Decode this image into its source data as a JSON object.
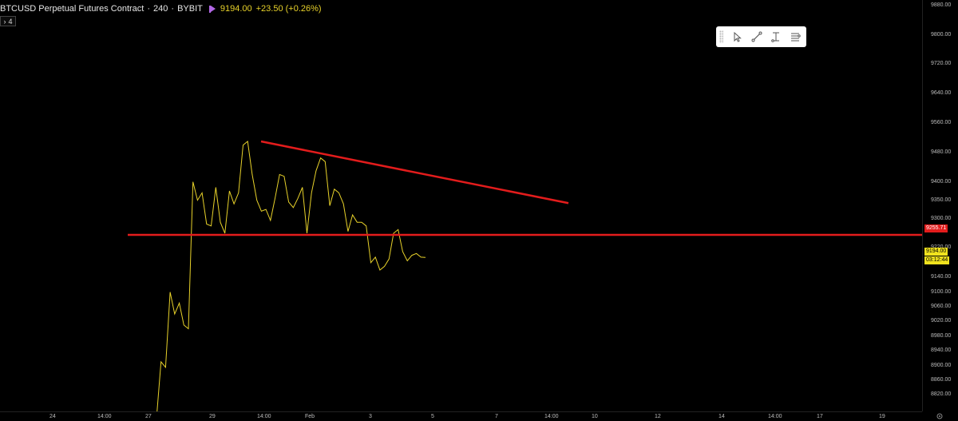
{
  "header": {
    "title": "BTCUSD Perpetual Futures Contract",
    "interval": "240",
    "exchange": "BYBIT",
    "price": "9194.00",
    "change": "+23.50 (+0.26%)",
    "collapse_label": "4",
    "flag_color": "#b267e6",
    "price_color": "#e8d22a"
  },
  "toolbar": {
    "tools": [
      "cursor-icon",
      "trend-line-icon",
      "text-cursor-icon",
      "menu-lines-icon"
    ]
  },
  "price_axis": {
    "labels": [
      "9880.00",
      "9800.00",
      "9720.00",
      "9640.00",
      "9560.00",
      "9480.00",
      "9400.00",
      "9350.00",
      "9300.00",
      "9220.00",
      "9140.00",
      "9100.00",
      "9060.00",
      "9020.00",
      "8980.00",
      "8940.00",
      "8900.00",
      "8860.00",
      "8820.00"
    ],
    "tags": {
      "level": "9255.71",
      "last_price": "9194.00",
      "countdown": "03:12:44"
    }
  },
  "time_axis": {
    "labels": [
      "24",
      "14:00",
      "27",
      "29",
      "14:00",
      "Feb",
      "3",
      "5",
      "7",
      "14:00",
      "10",
      "12",
      "14",
      "14:00",
      "17",
      "19"
    ]
  },
  "chart_data": {
    "type": "line",
    "title": "BTCUSD Perpetual Futures Contract · 240 · BYBIT",
    "xlabel": "",
    "ylabel": "",
    "ylim": [
      8775,
      9895
    ],
    "line_color": "#e8d22a",
    "series": [
      {
        "name": "",
        "x": [
          "Jan 27",
          "Jan 27",
          "Jan 27",
          "Jan 27",
          "Jan 28",
          "Jan 28",
          "Jan 28",
          "Jan 28",
          "Jan 28",
          "Jan 28",
          "Jan 28",
          "Jan 28",
          "Jan 29",
          "Jan 29",
          "Jan 29",
          "Jan 29",
          "Jan 29",
          "Jan 29",
          "Jan 29",
          "Jan 29",
          "Jan 30",
          "Jan 30",
          "Jan 30",
          "Jan 30",
          "Jan 30",
          "Jan 30",
          "Jan 30",
          "Jan 31",
          "Jan 31",
          "Jan 31",
          "Jan 31",
          "Jan 31",
          "Jan 31",
          "Feb 1",
          "Feb 1",
          "Feb 1",
          "Feb 1",
          "Feb 1",
          "Feb 1",
          "Feb 1",
          "Feb 2",
          "Feb 2",
          "Feb 2",
          "Feb 2",
          "Feb 2",
          "Feb 2",
          "Feb 2",
          "Feb 3",
          "Feb 3",
          "Feb 3",
          "Feb 3",
          "Feb 3",
          "Feb 3",
          "Feb 3",
          "Feb 4",
          "Feb 4",
          "Feb 4",
          "Feb 4",
          "Feb 4",
          "Feb 4"
        ],
        "values": [
          8755,
          8910,
          8895,
          9100,
          9040,
          9070,
          9010,
          9000,
          9400,
          9350,
          9370,
          9285,
          9280,
          9385,
          9290,
          9260,
          9375,
          9340,
          9370,
          9500,
          9510,
          9420,
          9350,
          9320,
          9325,
          9295,
          9355,
          9420,
          9415,
          9345,
          9330,
          9355,
          9385,
          9260,
          9370,
          9430,
          9465,
          9455,
          9335,
          9380,
          9370,
          9340,
          9265,
          9310,
          9290,
          9290,
          9280,
          9180,
          9195,
          9160,
          9170,
          9190,
          9260,
          9270,
          9210,
          9185,
          9200,
          9205,
          9195,
          9194
        ]
      }
    ],
    "overlays": [
      {
        "name": "horizontal-level",
        "value": 9255.71,
        "color": "#e31c1c"
      },
      {
        "name": "descending-trendline",
        "from": 9510,
        "to": 9342,
        "color": "#e31c1c"
      }
    ]
  }
}
